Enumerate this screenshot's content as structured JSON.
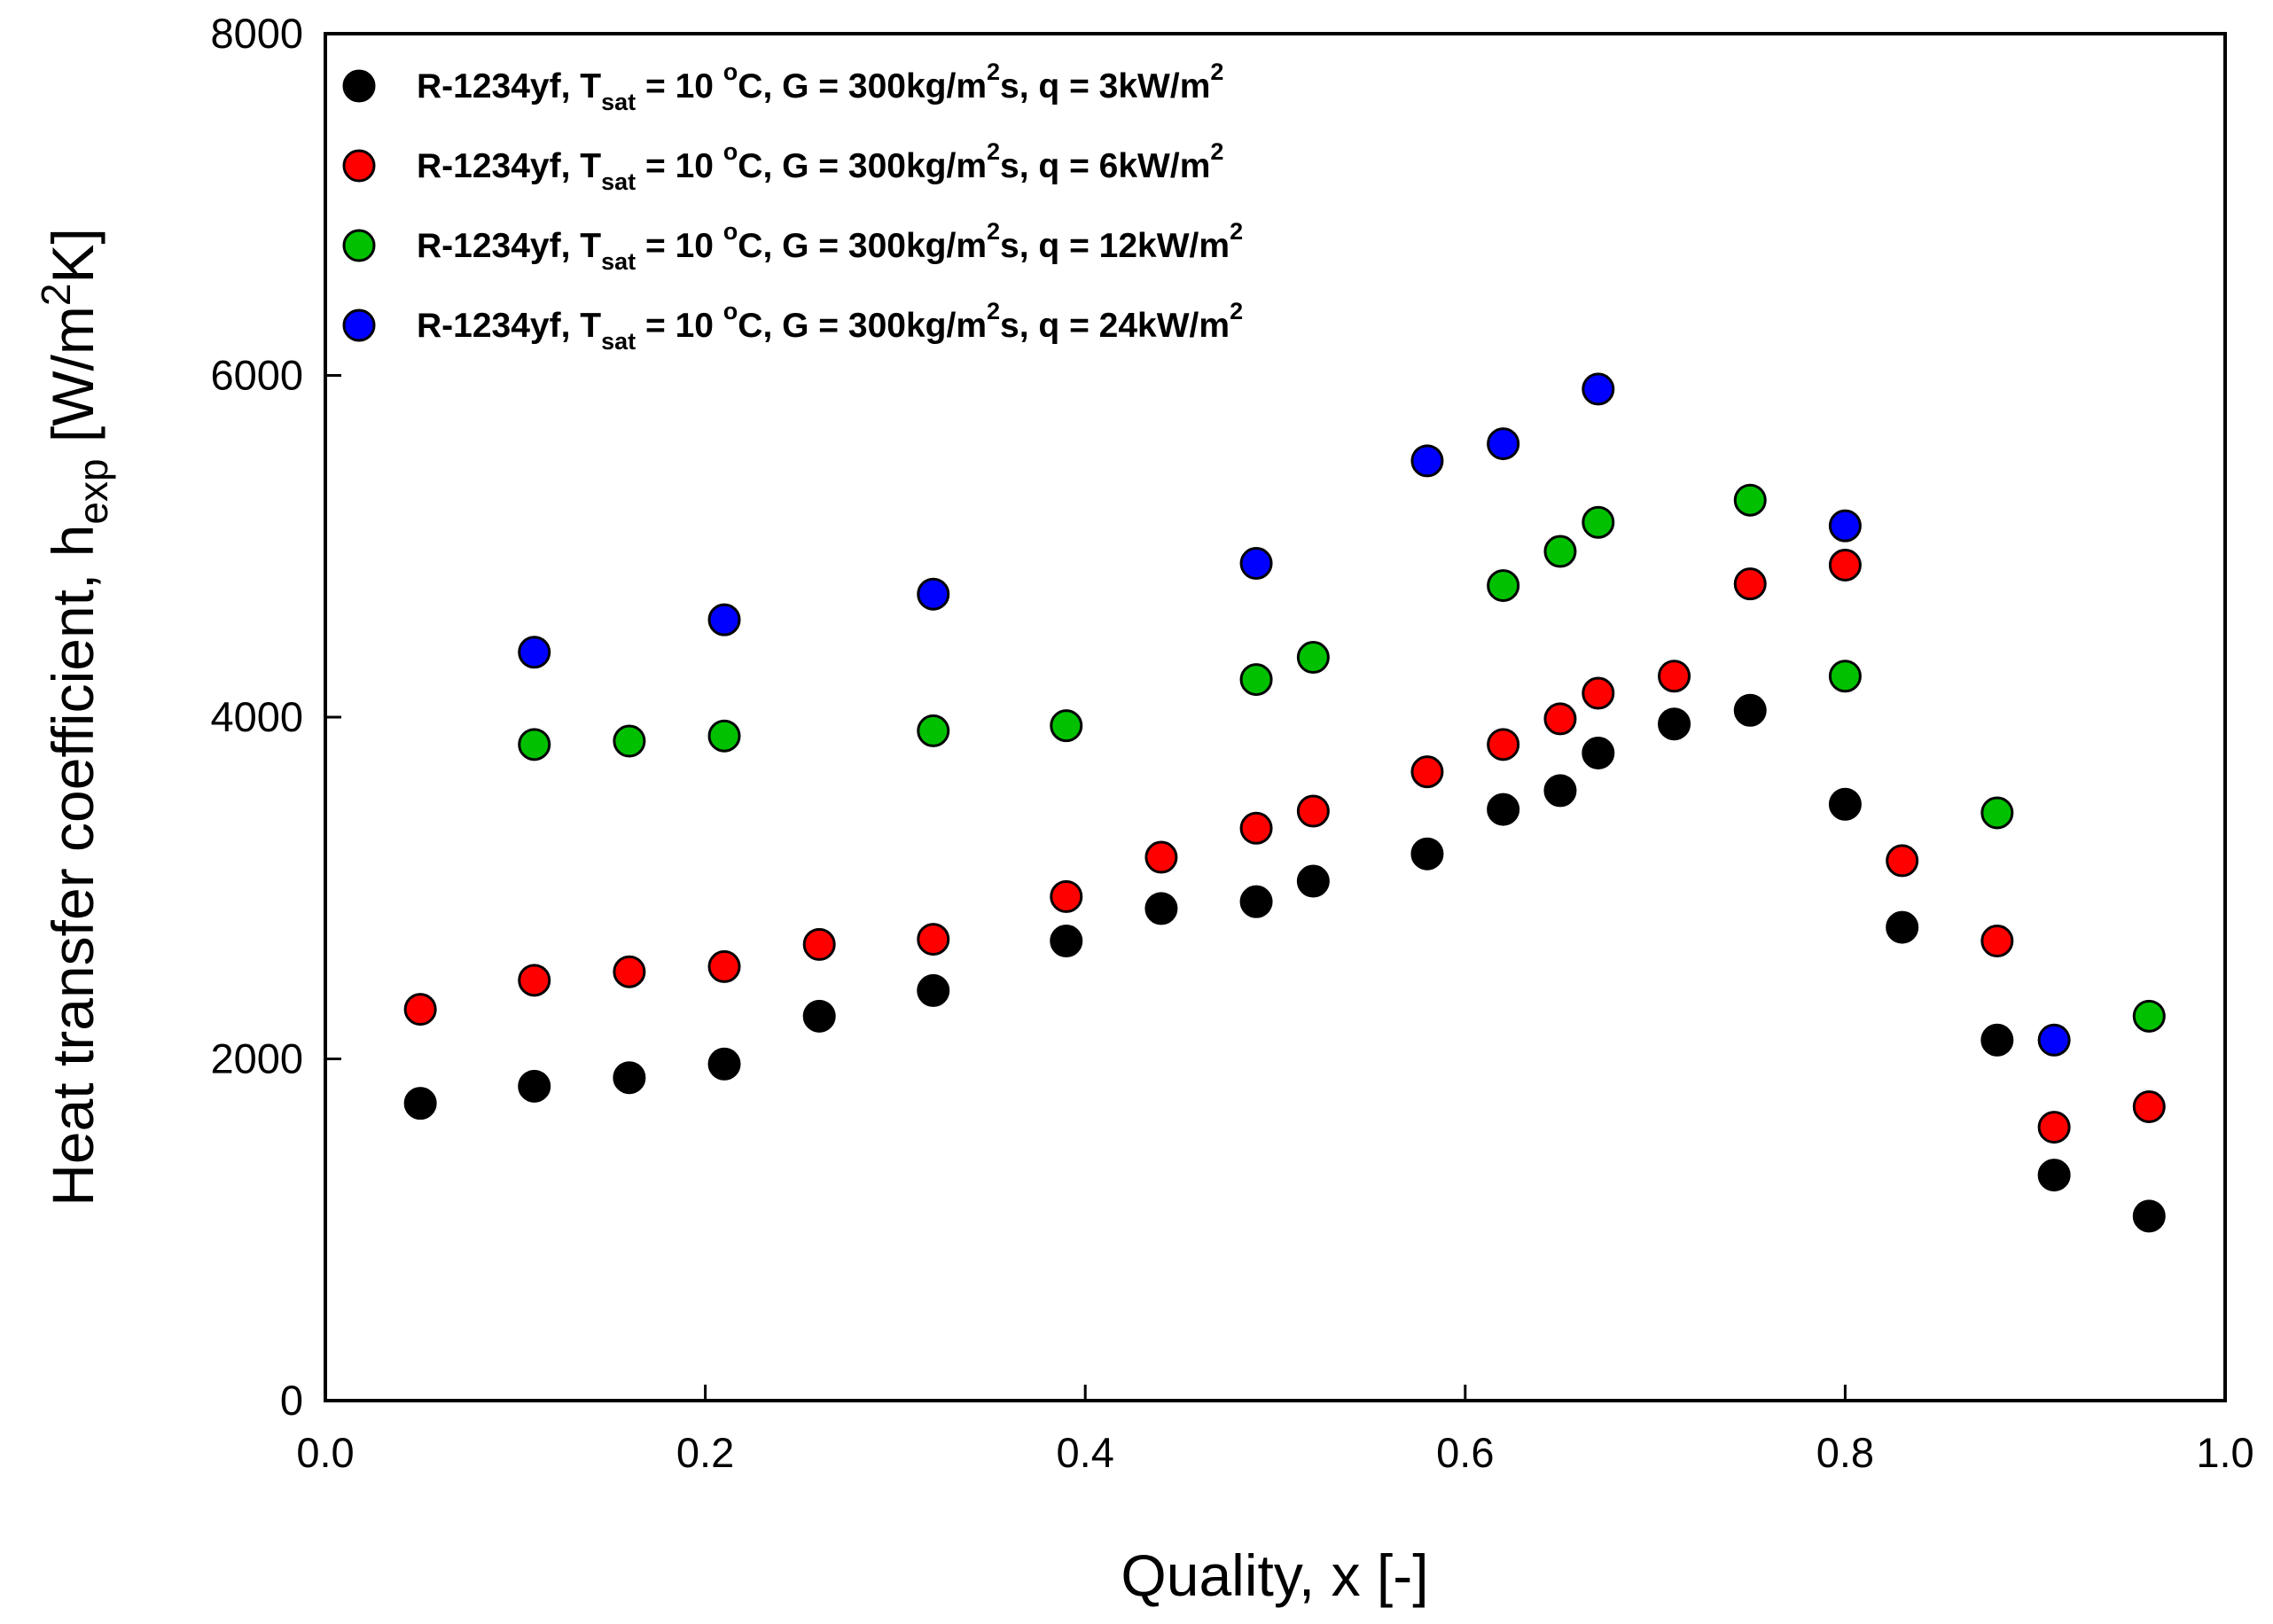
{
  "chart_data": {
    "type": "scatter",
    "xlabel": "Quality, x [-]",
    "ylabel": "Heat transfer coefficient, h_exp [W/m^2K]",
    "ylabel_parts": {
      "main": "Heat transfer coefficient, h",
      "sub": "exp",
      "mid": " [W/m",
      "sup": "2",
      "end": "K]"
    },
    "xlim": [
      0.0,
      1.0
    ],
    "ylim": [
      0,
      8000
    ],
    "xticks": [
      0.0,
      0.2,
      0.4,
      0.6,
      0.8,
      1.0
    ],
    "xtick_labels": [
      "0.0",
      "0.2",
      "0.4",
      "0.6",
      "0.8",
      "1.0"
    ],
    "yticks": [
      0,
      2000,
      4000,
      6000,
      8000
    ],
    "ytick_labels": [
      "0",
      "2000",
      "4000",
      "6000",
      "8000"
    ],
    "grid": false,
    "legend_position": "top-left",
    "series": [
      {
        "name": "R-1234yf, T_sat = 10 °C, G = 300kg/m²s, q = 3kW/m²",
        "legend_parts": {
          "p1": "R-1234yf, T",
          "sub": "sat",
          "p2": " = 10 ",
          "sup1": "o",
          "p3": "C, G = 300kg/m",
          "sup2": "2",
          "p4": "s, q = 3kW/m",
          "sup3": "2"
        },
        "color": "#000000",
        "x": [
          0.05,
          0.11,
          0.16,
          0.21,
          0.26,
          0.32,
          0.39,
          0.44,
          0.49,
          0.52,
          0.58,
          0.62,
          0.65,
          0.67,
          0.71,
          0.75,
          0.8,
          0.83,
          0.88,
          0.91,
          0.96
        ],
        "y": [
          1740,
          1840,
          1890,
          1970,
          2250,
          2400,
          2690,
          2880,
          2920,
          3040,
          3200,
          3460,
          3570,
          3790,
          3960,
          4040,
          3490,
          2770,
          2110,
          1320,
          1080
        ]
      },
      {
        "name": "R-1234yf, T_sat = 10 °C, G = 300kg/m²s, q = 6kW/m²",
        "legend_parts": {
          "p1": "R-1234yf, T",
          "sub": "sat",
          "p2": " = 10 ",
          "sup1": "o",
          "p3": "C, G = 300kg/m",
          "sup2": "2",
          "p4": "s, q = 6kW/m",
          "sup3": "2"
        },
        "color": "#ff0000",
        "x": [
          0.05,
          0.11,
          0.16,
          0.21,
          0.26,
          0.32,
          0.39,
          0.44,
          0.49,
          0.52,
          0.58,
          0.62,
          0.65,
          0.67,
          0.71,
          0.75,
          0.8,
          0.83,
          0.88,
          0.91,
          0.96
        ],
        "y": [
          2290,
          2460,
          2510,
          2540,
          2670,
          2700,
          2950,
          3180,
          3350,
          3450,
          3680,
          3840,
          3990,
          4140,
          4240,
          4780,
          4890,
          3160,
          2690,
          1600,
          1720
        ]
      },
      {
        "name": "R-1234yf, T_sat = 10 °C, G = 300kg/m²s, q = 12kW/m²",
        "legend_parts": {
          "p1": "R-1234yf, T",
          "sub": "sat",
          "p2": " = 10 ",
          "sup1": "o",
          "p3": "C, G = 300kg/m",
          "sup2": "2",
          "p4": "s, q = 12kW/m",
          "sup3": "2"
        },
        "color": "#00c000",
        "x": [
          0.11,
          0.16,
          0.21,
          0.32,
          0.39,
          0.49,
          0.52,
          0.62,
          0.65,
          0.67,
          0.75,
          0.8,
          0.88,
          0.96
        ],
        "y": [
          3840,
          3860,
          3890,
          3920,
          3950,
          4220,
          4350,
          4770,
          4970,
          5140,
          5270,
          4240,
          3440,
          2250
        ]
      },
      {
        "name": "R-1234yf, T_sat = 10 °C, G = 300kg/m²s, q = 24kW/m²",
        "legend_parts": {
          "p1": "R-1234yf, T",
          "sub": "sat",
          "p2": " = 10 ",
          "sup1": "o",
          "p3": "C, G = 300kg/m",
          "sup2": "2",
          "p4": "s, q = 24kW/m",
          "sup3": "2"
        },
        "color": "#0000ff",
        "x": [
          0.11,
          0.21,
          0.32,
          0.49,
          0.58,
          0.62,
          0.67,
          0.8,
          0.91
        ],
        "y": [
          4380,
          4570,
          4720,
          4900,
          5500,
          5600,
          5920,
          5120,
          2110
        ]
      }
    ]
  }
}
